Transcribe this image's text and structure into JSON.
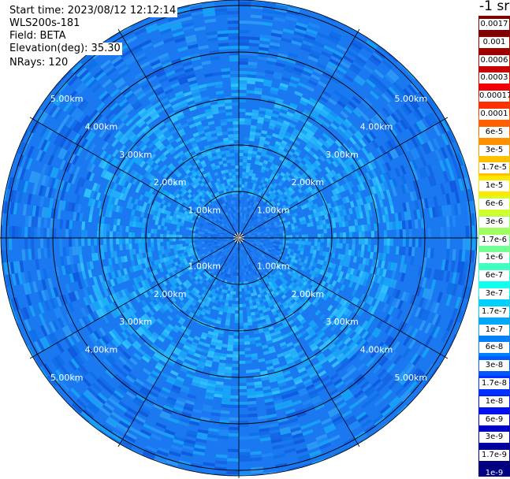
{
  "header": {
    "start_time": "Start time: 2023/08/12 12:12:14",
    "device": "WLS200s-181",
    "field": "Field: BETA",
    "elevation": "Elevation(deg): 35.30",
    "nrays": "NRays: 120"
  },
  "colorbar": {
    "title": "-1 sr",
    "labels": [
      "0.0017",
      "0.001",
      "0.0006",
      "0.0003",
      "0.00017",
      "0.0001",
      "6e-5",
      "3e-5",
      "1.7e-5",
      "1e-5",
      "6e-6",
      "3e-6",
      "1.7e-6",
      "1e-6",
      "6e-7",
      "3e-7",
      "1.7e-7",
      "1e-7",
      "6e-8",
      "3e-8",
      "1.7e-8",
      "1e-8",
      "6e-9",
      "3e-9",
      "1.7e-9",
      "1e-9"
    ],
    "colors": [
      "#7f0000",
      "#a00000",
      "#c80000",
      "#f00000",
      "#ff3000",
      "#ff6000",
      "#ff9000",
      "#ffc000",
      "#ffe800",
      "#d0ff30",
      "#a0ff60",
      "#70ff90",
      "#40ffc0",
      "#10fff0",
      "#00d0ff",
      "#00a8ff",
      "#0080ff",
      "#0058ff",
      "#0030ff",
      "#0010f0",
      "#0000c8",
      "#0000a0",
      "#000080"
    ]
  },
  "range_rings": {
    "labels": [
      "1.00km",
      "2.00km",
      "3.00km",
      "4.00km",
      "5.00km"
    ],
    "ring_values_km": [
      1,
      2,
      3,
      4,
      5
    ]
  },
  "chart_data": {
    "type": "heatmap",
    "projection": "polar",
    "field": "BETA",
    "elevation_deg": 35.3,
    "nrays": 120,
    "max_range_km": 5.1,
    "range_rings_km": [
      1,
      2,
      3,
      4,
      5
    ],
    "spokes_deg": [
      0,
      30,
      60,
      90,
      120,
      150,
      180,
      210,
      240,
      270,
      300,
      330
    ],
    "color_scale": "log",
    "value_range": [
      1e-09,
      0.0017
    ],
    "dominant_values": {
      "inner_core_0_to_1km": "6e-7 to 1.7e-7",
      "1km_to_3.5km": "3e-7 to 1e-7",
      "3.5km_to_5km": "1e-7 to 3e-8"
    }
  }
}
